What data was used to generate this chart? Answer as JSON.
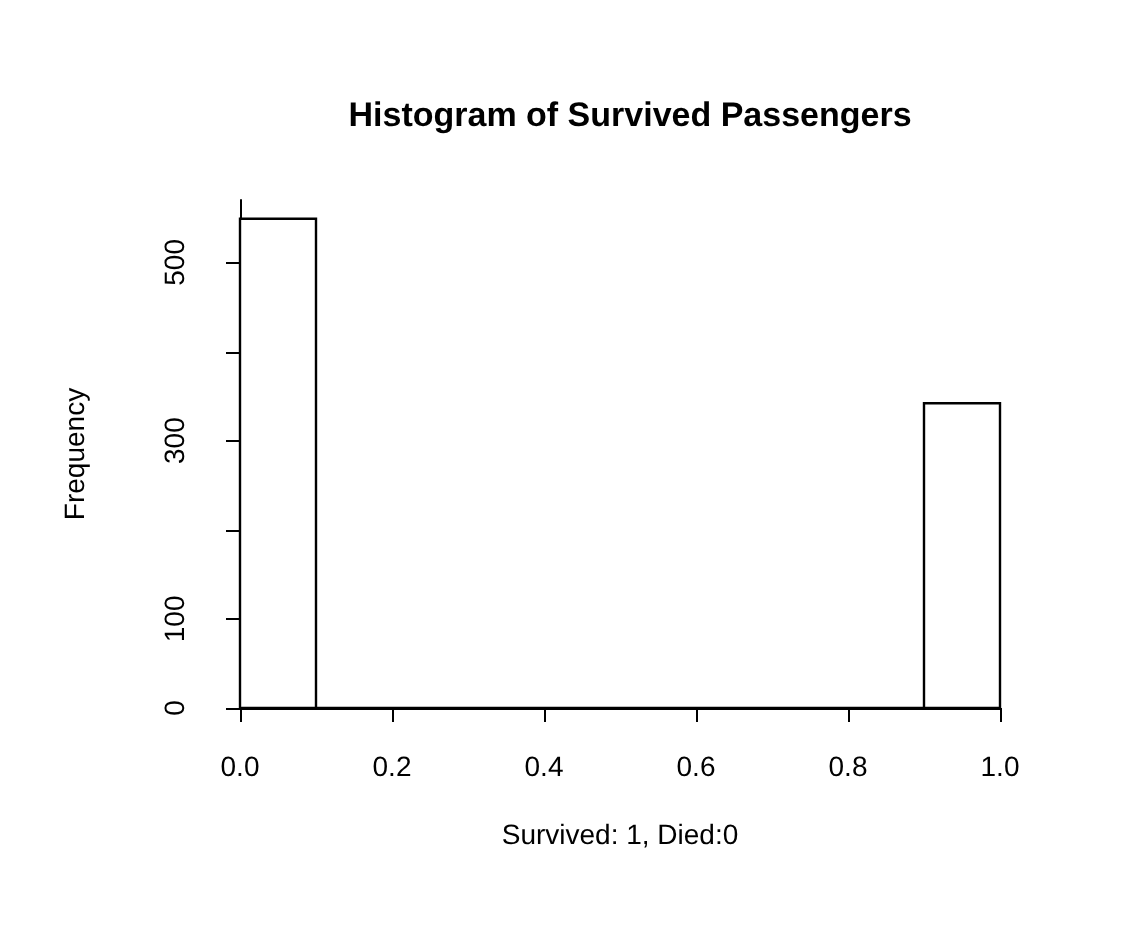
{
  "chart_data": {
    "type": "histogram",
    "title": "Histogram of Survived Passengers",
    "xlabel": "Survived: 1, Died:0",
    "ylabel": "Frequency",
    "bins": [
      0,
      0.1,
      0.2,
      0.3,
      0.4,
      0.5,
      0.6,
      0.7,
      0.8,
      0.9,
      1.0
    ],
    "values": [
      549,
      0,
      0,
      0,
      0,
      0,
      0,
      0,
      0,
      342
    ],
    "xlim": [
      0,
      1
    ],
    "xticks": [
      {
        "value": 0,
        "label": "0.0"
      },
      {
        "value": 0.2,
        "label": "0.2"
      },
      {
        "value": 0.4,
        "label": "0.4"
      },
      {
        "value": 0.6,
        "label": "0.6"
      },
      {
        "value": 0.8,
        "label": "0.8"
      },
      {
        "value": 1,
        "label": "1.0"
      }
    ],
    "ylim": [
      0,
      570
    ],
    "yticks": [
      0,
      100,
      {
        "value": 200,
        "label": null
      },
      300,
      {
        "value": 400,
        "label": null
      },
      500
    ],
    "grid": false
  }
}
